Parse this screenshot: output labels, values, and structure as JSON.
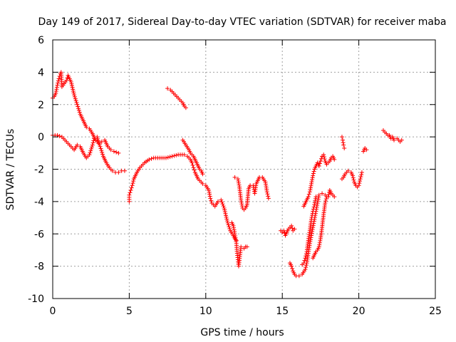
{
  "chart_data": {
    "type": "scatter",
    "title": "Day 149 of 2017, Sidereal Day-to-day VTEC variation (SDTVAR) for receiver maba",
    "xlabel": "GPS time / hours",
    "ylabel": "SDTVAR / TECUs",
    "xlim": [
      0,
      25
    ],
    "ylim": [
      -10,
      6
    ],
    "x_ticks": [
      0,
      5,
      10,
      15,
      20,
      25
    ],
    "y_ticks": [
      -10,
      -8,
      -6,
      -4,
      -2,
      0,
      2,
      4,
      6
    ],
    "x_tick_labels": [
      "0",
      "5",
      "10",
      "15",
      "20",
      "25"
    ],
    "y_tick_labels": [
      "-10",
      "-8",
      "-6",
      "-4",
      "-2",
      "0",
      "2",
      "4",
      "6"
    ],
    "grid": true,
    "legend": "none",
    "marker": "+",
    "color": "#ff0000",
    "series": [
      {
        "points": [
          [
            0.0,
            2.4
          ],
          [
            0.1,
            2.5
          ],
          [
            0.2,
            2.7
          ],
          [
            0.3,
            3.2
          ],
          [
            0.4,
            3.6
          ],
          [
            0.5,
            3.9
          ],
          [
            0.55,
            4.0
          ],
          [
            0.6,
            3.1
          ],
          [
            0.9,
            3.5
          ],
          [
            1.0,
            3.8
          ],
          [
            1.2,
            3.4
          ],
          [
            1.4,
            2.6
          ],
          [
            1.6,
            2.0
          ],
          [
            1.8,
            1.4
          ],
          [
            2.0,
            1.0
          ],
          [
            2.2,
            0.6
          ],
          [
            2.4,
            0.5
          ],
          [
            2.6,
            0.2
          ],
          [
            2.8,
            -0.2
          ],
          [
            3.0,
            -0.4
          ],
          [
            3.2,
            -0.3
          ],
          [
            3.4,
            -0.2
          ],
          [
            3.6,
            -0.6
          ],
          [
            3.8,
            -0.8
          ],
          [
            4.0,
            -0.9
          ],
          [
            4.3,
            -1.0
          ]
        ]
      },
      {
        "points": [
          [
            0.0,
            0.1
          ],
          [
            0.3,
            0.1
          ],
          [
            0.6,
            0.0
          ],
          [
            0.9,
            -0.3
          ],
          [
            1.2,
            -0.6
          ],
          [
            1.4,
            -0.8
          ],
          [
            1.6,
            -0.5
          ],
          [
            1.8,
            -0.6
          ],
          [
            2.0,
            -1.0
          ],
          [
            2.2,
            -1.3
          ],
          [
            2.4,
            -1.1
          ],
          [
            2.6,
            -0.5
          ],
          [
            2.7,
            -0.1
          ],
          [
            2.9,
            0.0
          ],
          [
            3.1,
            -0.6
          ],
          [
            3.3,
            -1.2
          ],
          [
            3.5,
            -1.6
          ],
          [
            3.7,
            -1.9
          ],
          [
            3.9,
            -2.1
          ],
          [
            4.1,
            -2.2
          ],
          [
            4.3,
            -2.2
          ],
          [
            4.5,
            -2.1
          ],
          [
            4.7,
            -2.1
          ]
        ]
      },
      {
        "points": [
          [
            5.0,
            -4.0
          ],
          [
            5.0,
            -3.6
          ],
          [
            5.1,
            -3.3
          ],
          [
            5.2,
            -3.0
          ],
          [
            5.3,
            -2.6
          ],
          [
            5.5,
            -2.2
          ],
          [
            5.7,
            -1.9
          ],
          [
            6.0,
            -1.6
          ],
          [
            6.3,
            -1.4
          ],
          [
            6.6,
            -1.3
          ],
          [
            7.0,
            -1.3
          ],
          [
            7.4,
            -1.3
          ],
          [
            7.8,
            -1.2
          ],
          [
            8.2,
            -1.1
          ],
          [
            8.6,
            -1.1
          ],
          [
            8.8,
            -1.2
          ],
          [
            9.0,
            -1.4
          ],
          [
            9.1,
            -1.6
          ],
          [
            9.2,
            -1.9
          ],
          [
            9.3,
            -2.2
          ],
          [
            9.5,
            -2.6
          ],
          [
            9.8,
            -2.9
          ],
          [
            10.0,
            -3.0
          ],
          [
            10.2,
            -3.3
          ],
          [
            10.3,
            -3.8
          ],
          [
            10.4,
            -4.1
          ],
          [
            10.6,
            -4.3
          ],
          [
            10.8,
            -4.0
          ],
          [
            11.0,
            -3.9
          ],
          [
            11.2,
            -4.4
          ],
          [
            11.4,
            -5.2
          ],
          [
            11.6,
            -5.8
          ],
          [
            11.8,
            -6.1
          ],
          [
            11.9,
            -6.3
          ],
          [
            12.0,
            -6.4
          ]
        ]
      },
      {
        "points": [
          [
            7.5,
            3.0
          ],
          [
            7.7,
            2.9
          ],
          [
            7.9,
            2.7
          ],
          [
            8.1,
            2.5
          ],
          [
            8.3,
            2.3
          ],
          [
            8.5,
            2.1
          ],
          [
            8.6,
            1.9
          ],
          [
            8.7,
            1.8
          ]
        ]
      },
      {
        "points": [
          [
            8.5,
            -0.2
          ],
          [
            8.7,
            -0.5
          ],
          [
            8.9,
            -0.8
          ],
          [
            9.0,
            -1.0
          ],
          [
            9.1,
            -1.1
          ],
          [
            9.2,
            -1.2
          ],
          [
            9.3,
            -1.4
          ],
          [
            9.4,
            -1.6
          ],
          [
            9.5,
            -1.8
          ],
          [
            9.6,
            -2.0
          ],
          [
            9.7,
            -2.1
          ],
          [
            9.8,
            -2.3
          ]
        ]
      },
      {
        "points": [
          [
            11.7,
            -5.3
          ],
          [
            11.8,
            -5.5
          ],
          [
            11.9,
            -6.0
          ],
          [
            12.0,
            -6.6
          ],
          [
            12.05,
            -7.2
          ],
          [
            12.1,
            -7.6
          ],
          [
            12.15,
            -8.0
          ],
          [
            12.3,
            -6.8
          ],
          [
            12.5,
            -6.9
          ],
          [
            12.6,
            -6.8
          ],
          [
            12.7,
            -6.8
          ]
        ]
      },
      {
        "points": [
          [
            11.9,
            -2.5
          ],
          [
            12.1,
            -2.6
          ],
          [
            12.2,
            -3.1
          ],
          [
            12.3,
            -3.9
          ],
          [
            12.4,
            -4.4
          ],
          [
            12.5,
            -4.5
          ],
          [
            12.6,
            -4.4
          ],
          [
            12.7,
            -4.2
          ],
          [
            12.8,
            -3.2
          ],
          [
            12.9,
            -3.0
          ],
          [
            13.1,
            -3.0
          ],
          [
            13.2,
            -3.5
          ],
          [
            13.3,
            -2.9
          ],
          [
            13.5,
            -2.5
          ],
          [
            13.7,
            -2.5
          ],
          [
            13.9,
            -2.8
          ],
          [
            14.0,
            -3.4
          ],
          [
            14.1,
            -3.8
          ]
        ]
      },
      {
        "points": [
          [
            14.9,
            -5.8
          ],
          [
            15.0,
            -5.9
          ],
          [
            15.1,
            -5.8
          ],
          [
            15.2,
            -6.1
          ],
          [
            15.3,
            -5.9
          ],
          [
            15.4,
            -5.7
          ],
          [
            15.5,
            -5.6
          ],
          [
            15.6,
            -5.5
          ],
          [
            15.7,
            -5.8
          ],
          [
            15.8,
            -5.7
          ]
        ]
      },
      {
        "points": [
          [
            15.5,
            -7.8
          ],
          [
            15.6,
            -8.0
          ],
          [
            15.7,
            -8.3
          ],
          [
            15.8,
            -8.5
          ],
          [
            15.9,
            -8.6
          ],
          [
            16.1,
            -8.6
          ],
          [
            16.3,
            -8.5
          ],
          [
            16.5,
            -8.2
          ],
          [
            16.6,
            -7.8
          ],
          [
            16.7,
            -7.2
          ],
          [
            16.8,
            -6.6
          ],
          [
            16.9,
            -6.1
          ],
          [
            17.0,
            -5.6
          ],
          [
            17.1,
            -5.1
          ],
          [
            17.2,
            -4.6
          ],
          [
            17.3,
            -4.1
          ],
          [
            17.4,
            -3.6
          ],
          [
            17.6,
            -3.5
          ],
          [
            17.8,
            -3.6
          ],
          [
            18.0,
            -3.7
          ],
          [
            18.1,
            -3.3
          ],
          [
            18.2,
            -3.5
          ],
          [
            18.4,
            -3.7
          ]
        ]
      },
      {
        "points": [
          [
            16.4,
            -4.3
          ],
          [
            16.5,
            -4.1
          ],
          [
            16.6,
            -3.9
          ],
          [
            16.7,
            -3.7
          ],
          [
            16.8,
            -3.4
          ],
          [
            16.9,
            -2.9
          ],
          [
            17.0,
            -2.4
          ],
          [
            17.1,
            -2.0
          ],
          [
            17.2,
            -1.8
          ],
          [
            17.3,
            -1.6
          ],
          [
            17.4,
            -1.8
          ],
          [
            17.5,
            -1.5
          ],
          [
            17.6,
            -1.2
          ],
          [
            17.7,
            -1.1
          ],
          [
            17.8,
            -1.5
          ],
          [
            17.9,
            -1.7
          ],
          [
            18.0,
            -1.6
          ],
          [
            18.1,
            -1.5
          ],
          [
            18.2,
            -1.3
          ],
          [
            18.3,
            -1.2
          ],
          [
            18.4,
            -1.4
          ]
        ]
      },
      {
        "points": [
          [
            16.3,
            -7.9
          ],
          [
            16.4,
            -7.8
          ],
          [
            16.5,
            -7.5
          ],
          [
            16.6,
            -7.1
          ],
          [
            16.7,
            -6.4
          ],
          [
            16.8,
            -5.8
          ],
          [
            16.9,
            -5.1
          ],
          [
            17.0,
            -4.6
          ],
          [
            17.1,
            -4.2
          ],
          [
            17.2,
            -3.7
          ]
        ]
      },
      {
        "points": [
          [
            17.0,
            -7.5
          ],
          [
            17.1,
            -7.3
          ],
          [
            17.2,
            -7.1
          ],
          [
            17.3,
            -7.0
          ],
          [
            17.4,
            -6.8
          ],
          [
            17.5,
            -6.3
          ],
          [
            17.6,
            -5.6
          ],
          [
            17.7,
            -4.8
          ],
          [
            17.8,
            -4.1
          ],
          [
            17.9,
            -3.7
          ]
        ]
      },
      {
        "points": [
          [
            18.9,
            0.0
          ],
          [
            18.95,
            -0.2
          ],
          [
            19.0,
            -0.5
          ],
          [
            19.05,
            -0.7
          ]
        ]
      },
      {
        "points": [
          [
            18.9,
            -2.6
          ],
          [
            19.0,
            -2.5
          ],
          [
            19.1,
            -2.3
          ],
          [
            19.3,
            -2.1
          ],
          [
            19.5,
            -2.2
          ],
          [
            19.6,
            -2.4
          ],
          [
            19.7,
            -2.8
          ],
          [
            19.8,
            -3.0
          ],
          [
            19.9,
            -3.1
          ],
          [
            20.0,
            -3.0
          ],
          [
            20.1,
            -2.6
          ],
          [
            20.2,
            -2.2
          ]
        ]
      },
      {
        "points": [
          [
            20.3,
            -0.9
          ],
          [
            20.4,
            -0.7
          ],
          [
            20.5,
            -0.8
          ]
        ]
      },
      {
        "points": [
          [
            21.6,
            0.4
          ],
          [
            21.7,
            0.3
          ],
          [
            21.8,
            0.2
          ],
          [
            21.9,
            0.1
          ],
          [
            22.0,
            0.1
          ],
          [
            22.1,
            -0.1
          ],
          [
            22.2,
            0.0
          ],
          [
            22.3,
            -0.2
          ],
          [
            22.5,
            -0.1
          ],
          [
            22.6,
            -0.2
          ],
          [
            22.7,
            -0.3
          ],
          [
            22.8,
            -0.2
          ]
        ]
      }
    ]
  }
}
